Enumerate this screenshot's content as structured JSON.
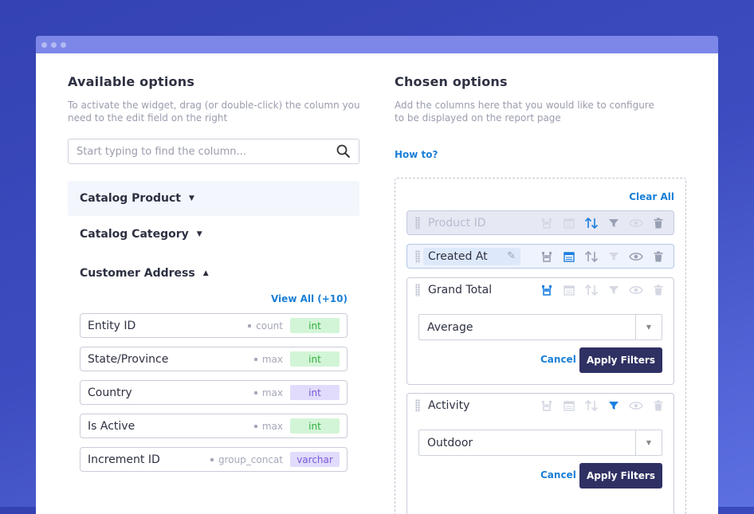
{
  "available": {
    "title": "Available options",
    "description_line1": "To activate the widget, drag (or double-click) the column you",
    "description_line2": "need to the edit field on the right",
    "search_placeholder": "Start typing to find the column...",
    "categories": [
      {
        "label": "Catalog Product",
        "expanded": false
      },
      {
        "label": "Catalog Category",
        "expanded": false
      },
      {
        "label": "Customer Address",
        "expanded": true
      }
    ],
    "view_all": "View All (+10)",
    "items": [
      {
        "name": "Entity ID",
        "agg": "count",
        "type": "int",
        "type_color": "green"
      },
      {
        "name": "State/Province",
        "agg": "max",
        "type": "int",
        "type_color": "green"
      },
      {
        "name": "Country",
        "agg": "max",
        "type": "int",
        "type_color": "purple"
      },
      {
        "name": "Is Active",
        "agg": "max",
        "type": "int",
        "type_color": "green"
      },
      {
        "name": "Increment ID",
        "agg": "group_concat",
        "type": "varchar",
        "type_color": "purple"
      }
    ]
  },
  "chosen": {
    "title": "Chosen options",
    "description_line1": "Add the columns here that you would like to configure",
    "description_line2": "to be displayed on the report page",
    "how_to": "How to?",
    "clear_all": "Clear All",
    "rows": [
      {
        "label": "Product ID",
        "state": "disabled"
      },
      {
        "label": "Created At",
        "state": "editing"
      },
      {
        "label": "Grand Total",
        "state": "expanded",
        "select": "Average",
        "cancel": "Cancel",
        "apply": "Apply Filters"
      },
      {
        "label": "Activity",
        "state": "expanded",
        "select": "Outdoor",
        "cancel": "Cancel",
        "apply": "Apply Filters"
      }
    ]
  },
  "colors": {
    "accent": "#1a7fe0",
    "button": "#2f3163",
    "int_badge": "#d3f5d7",
    "purple_badge": "#e1dcfb"
  }
}
